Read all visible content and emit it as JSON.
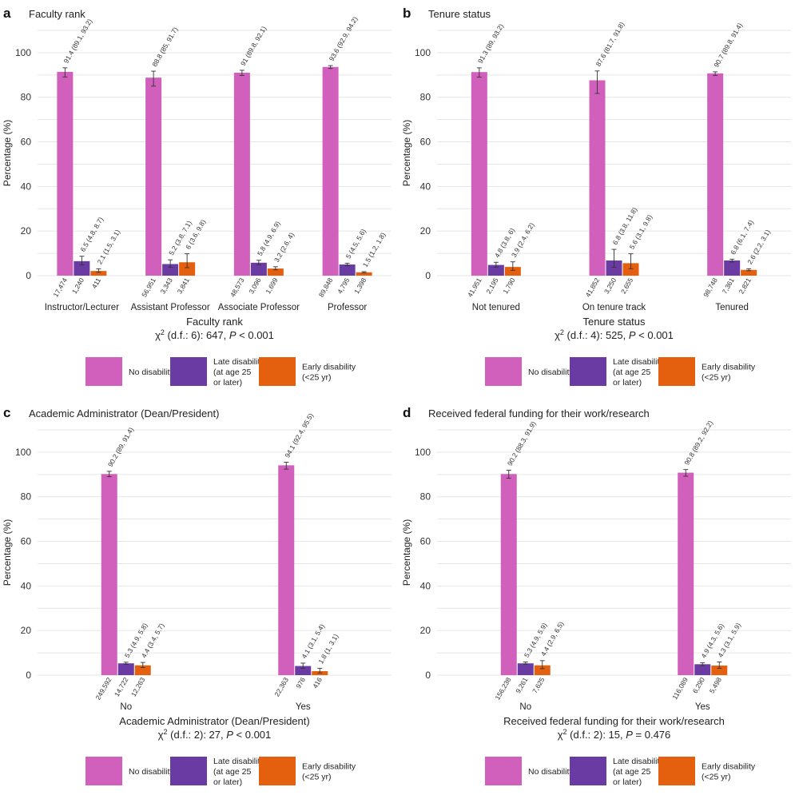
{
  "legend": {
    "items": [
      {
        "key": "no",
        "label": [
          "No disability"
        ],
        "color": "#d15fbc"
      },
      {
        "key": "late",
        "label": [
          "Late disability",
          "(at age 25",
          "or later)"
        ],
        "color": "#6a3ca3"
      },
      {
        "key": "early",
        "label": [
          "Early disability",
          "(<25 yr)"
        ],
        "color": "#e5600e"
      }
    ]
  },
  "chart_data": [
    {
      "id": "a",
      "panel_label": "a",
      "type": "bar",
      "title": "Faculty rank",
      "ylabel": "Percentage (%)",
      "xlabel": "Faculty rank",
      "ylim": [
        0,
        110
      ],
      "yticks": [
        0,
        20,
        40,
        60,
        80,
        100
      ],
      "chi": {
        "prefix": "χ",
        "sup": "2",
        "mid": " (d.f.: 6): 647, ",
        "p": "P",
        "suffix": " < 0.001"
      },
      "categories": [
        "Instructor/Lecturer",
        "Assistant Professor",
        "Associate Professor",
        "Professor"
      ],
      "series": [
        {
          "name": "No disability",
          "values": [
            91.4,
            88.8,
            91,
            93.6
          ],
          "ci": [
            [
              89.1,
              93.2
            ],
            [
              85,
              91.7
            ],
            [
              89.8,
              92.1
            ],
            [
              92.9,
              94.2
            ]
          ],
          "labels": [
            "91.4 (89.1, 93.2)",
            "88.8 (85, 91.7)",
            "91 (89.8, 92.1)",
            "93.6 (92.9, 94.2)"
          ],
          "n": [
            "17,474",
            "56,951",
            "48,573",
            "89,848"
          ]
        },
        {
          "name": "Late disability (at age 25 or later)",
          "values": [
            6.5,
            5.2,
            5.8,
            5
          ],
          "ci": [
            [
              4.8,
              8.7
            ],
            [
              3.8,
              7.1
            ],
            [
              4.9,
              6.9
            ],
            [
              4.5,
              5.6
            ]
          ],
          "labels": [
            "6.5 (4.8, 8.7)",
            "5.2 (3.8, 7.1)",
            "5.8 (4.9, 6.9)",
            "5 (4.5, 5.6)"
          ],
          "n": [
            "1,240",
            "3,343",
            "3,096",
            "4,795"
          ]
        },
        {
          "name": "Early disability (<25 yr)",
          "values": [
            2.1,
            6,
            3.2,
            1.5
          ],
          "ci": [
            [
              1.5,
              3.1
            ],
            [
              3.6,
              9.8
            ],
            [
              2.6,
              4
            ],
            [
              1.2,
              1.8
            ]
          ],
          "labels": [
            "2.1 (1.5, 3.1)",
            "6 (3.6, 9.8)",
            "3.2 (2.6, 4)",
            "1.5 (1.2, 1.8)"
          ],
          "n": [
            "411",
            "3,841",
            "1,699",
            "1,398"
          ]
        }
      ]
    },
    {
      "id": "b",
      "panel_label": "b",
      "type": "bar",
      "title": "Tenure status",
      "ylabel": "Percentage (%)",
      "xlabel": "Tenure status",
      "ylim": [
        0,
        110
      ],
      "yticks": [
        0,
        20,
        40,
        60,
        80,
        100
      ],
      "chi": {
        "prefix": "χ",
        "sup": "2",
        "mid": " (d.f.: 4): 525, ",
        "p": "P",
        "suffix": " < 0.001"
      },
      "categories": [
        "Not tenured",
        "On tenure track",
        "Tenured"
      ],
      "series": [
        {
          "name": "No disability",
          "values": [
            91.3,
            87.6,
            90.7
          ],
          "ci": [
            [
              89,
              93.2
            ],
            [
              81.7,
              91.8
            ],
            [
              89.8,
              91.4
            ]
          ],
          "labels": [
            "91.3 (89, 93.2)",
            "87.6 (81.7, 91.8)",
            "90.7 (89.8, 91.4)"
          ],
          "n": [
            "41,951",
            "41,852",
            "98,748"
          ]
        },
        {
          "name": "Late disability (at age 25 or later)",
          "values": [
            4.8,
            6.8,
            6.8
          ],
          "ci": [
            [
              3.8,
              6
            ],
            [
              3.8,
              11.8
            ],
            [
              6.1,
              7.4
            ]
          ],
          "labels": [
            "4.8 (3.8, 6)",
            "6.8 (3.8, 11.8)",
            "6.8 (6.1, 7.4)"
          ],
          "n": [
            "2,195",
            "3,250",
            "7,361"
          ]
        },
        {
          "name": "Early disability (<25 yr)",
          "values": [
            3.9,
            5.6,
            2.6
          ],
          "ci": [
            [
              2.4,
              6.2
            ],
            [
              3.1,
              9.8
            ],
            [
              2.2,
              3.1
            ]
          ],
          "labels": [
            "3.9 (2.4, 6.2)",
            "5.6 (3.1, 9.8)",
            "2.6 (2.2, 3.1)"
          ],
          "n": [
            "1,790",
            "2,655",
            "2,821"
          ]
        }
      ]
    },
    {
      "id": "c",
      "panel_label": "c",
      "type": "bar",
      "title": "Academic Administrator (Dean/President)",
      "ylabel": "Percentage (%)",
      "xlabel": "Academic Administrator (Dean/President)",
      "ylim": [
        0,
        110
      ],
      "yticks": [
        0,
        20,
        40,
        60,
        80,
        100
      ],
      "chi": {
        "prefix": "χ",
        "sup": "2",
        "mid": " (d.f.: 2): 27, ",
        "p": "P",
        "suffix": " < 0.001"
      },
      "categories": [
        "No",
        "Yes"
      ],
      "series": [
        {
          "name": "No disability",
          "values": [
            90.2,
            94.1
          ],
          "ci": [
            [
              89,
              91.4
            ],
            [
              92.4,
              95.5
            ]
          ],
          "labels": [
            "90.2 (89, 91.4)",
            "94.1 (92.4, 95.5)"
          ],
          "n": [
            "249,592",
            "22,363"
          ]
        },
        {
          "name": "Late disability (at age 25 or later)",
          "values": [
            5.3,
            4.1
          ],
          "ci": [
            [
              4.9,
              5.8
            ],
            [
              3.1,
              5.4
            ]
          ],
          "labels": [
            "5.3 (4.9, 5.8)",
            "4.1 (3.1, 5.4)"
          ],
          "n": [
            "14,722",
            "976"
          ]
        },
        {
          "name": "Early disability (<25 yr)",
          "values": [
            4.4,
            1.8
          ],
          "ci": [
            [
              3.4,
              5.7
            ],
            [
              1,
              3.1
            ]
          ],
          "labels": [
            "4.4 (3.4, 5.7)",
            "1.8 (1, 3.1)"
          ],
          "n": [
            "12,263",
            "416"
          ]
        }
      ]
    },
    {
      "id": "d",
      "panel_label": "d",
      "type": "bar",
      "title": "Received federal funding for their work/research",
      "ylabel": "Percentage (%)",
      "xlabel": "Received federal funding for their work/research",
      "ylim": [
        0,
        110
      ],
      "yticks": [
        0,
        20,
        40,
        60,
        80,
        100
      ],
      "chi": {
        "prefix": "χ",
        "sup": "2",
        "mid": " (d.f.: 2): 15, ",
        "p": "P",
        "suffix": " = 0.476"
      },
      "categories": [
        "No",
        "Yes"
      ],
      "series": [
        {
          "name": "No disability",
          "values": [
            90.2,
            90.8
          ],
          "ci": [
            [
              88.3,
              91.9
            ],
            [
              89.2,
              92.2
            ]
          ],
          "labels": [
            "90.2 (88.3, 91.9)",
            "90.8 (89.2, 92.2)"
          ],
          "n": [
            "156,238",
            "116,089"
          ]
        },
        {
          "name": "Late disability (at age 25 or later)",
          "values": [
            5.3,
            4.9
          ],
          "ci": [
            [
              4.9,
              5.9
            ],
            [
              4.3,
              5.6
            ]
          ],
          "labels": [
            "5.3 (4.9, 5.9)",
            "4.9 (4.3, 5.6)"
          ],
          "n": [
            "9,261",
            "6,290"
          ]
        },
        {
          "name": "Early disability (<25 yr)",
          "values": [
            4.4,
            4.3
          ],
          "ci": [
            [
              2.9,
              6.5
            ],
            [
              3.1,
              5.9
            ]
          ],
          "labels": [
            "4.4 (2.9, 6.5)",
            "4.3 (3.1, 5.9)"
          ],
          "n": [
            "7,625",
            "5,498"
          ]
        }
      ]
    }
  ]
}
